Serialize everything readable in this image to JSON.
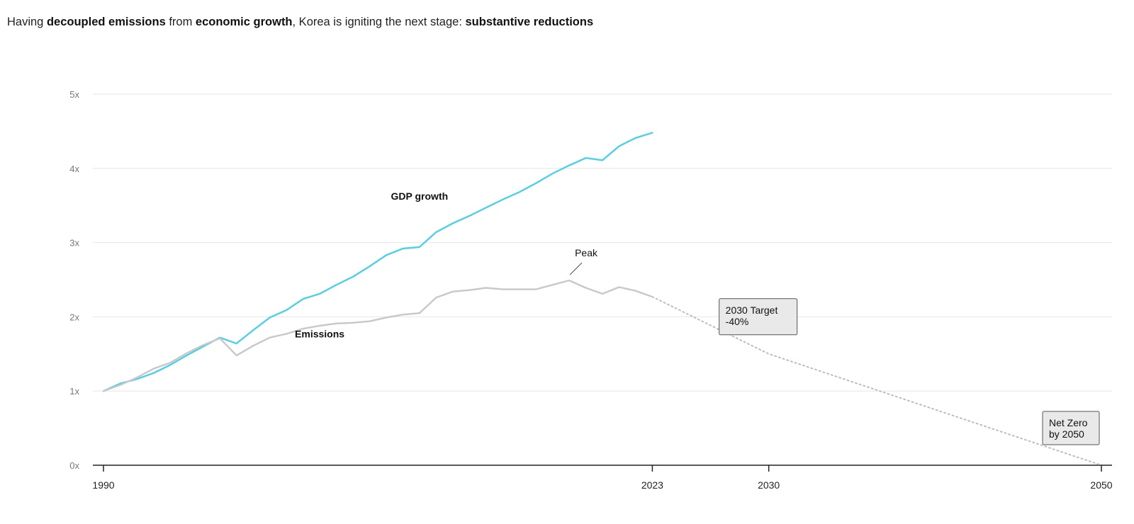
{
  "headline": {
    "part1": "Having ",
    "bold1": "decoupled emissions",
    "part2": " from ",
    "bold2": "economic growth",
    "part3": ", Korea is igniting the next stage: ",
    "bold3": "substantive reductions"
  },
  "chart_data": {
    "type": "line",
    "title": "Having decoupled emissions from economic growth, Korea is igniting the next stage: substantive reductions",
    "xlabel": "",
    "ylabel": "",
    "xlim": [
      1990,
      2050
    ],
    "ylim": [
      0,
      5
    ],
    "grid": true,
    "y_ticks": [
      {
        "value": 0,
        "label": "0x"
      },
      {
        "value": 1,
        "label": "1x"
      },
      {
        "value": 2,
        "label": "2x"
      },
      {
        "value": 3,
        "label": "3x"
      },
      {
        "value": 4,
        "label": "4x"
      },
      {
        "value": 5,
        "label": "5x"
      }
    ],
    "x_ticks": [
      {
        "value": 1990,
        "label": "1990"
      },
      {
        "value": 2023,
        "label": "2023"
      },
      {
        "value": 2030,
        "label": "2030"
      },
      {
        "value": 2050,
        "label": "2050"
      }
    ],
    "x_tick_marks": [
      1990,
      2023,
      2030,
      2050
    ],
    "series": [
      {
        "name": "GDP growth",
        "color": "#4fcfe8",
        "style": "solid",
        "x": [
          1990,
          1991,
          1992,
          1993,
          1994,
          1995,
          1996,
          1997,
          1998,
          1999,
          2000,
          2001,
          2002,
          2003,
          2004,
          2005,
          2006,
          2007,
          2008,
          2009,
          2010,
          2011,
          2012,
          2013,
          2014,
          2015,
          2016,
          2017,
          2018,
          2019,
          2020,
          2021,
          2022,
          2023
        ],
        "values": [
          1.0,
          1.1,
          1.16,
          1.24,
          1.35,
          1.48,
          1.6,
          1.72,
          1.64,
          1.82,
          1.99,
          2.09,
          2.24,
          2.31,
          2.43,
          2.54,
          2.68,
          2.83,
          2.92,
          2.94,
          3.14,
          3.26,
          3.36,
          3.47,
          3.58,
          3.68,
          3.8,
          3.93,
          4.04,
          4.14,
          4.11,
          4.3,
          4.41,
          4.48
        ]
      },
      {
        "name": "Emissions",
        "color": "#c8c8c8",
        "style": "solid",
        "x": [
          1990,
          1991,
          1992,
          1993,
          1994,
          1995,
          1996,
          1997,
          1998,
          1999,
          2000,
          2001,
          2002,
          2003,
          2004,
          2005,
          2006,
          2007,
          2008,
          2009,
          2010,
          2011,
          2012,
          2013,
          2014,
          2015,
          2016,
          2017,
          2018,
          2019,
          2020,
          2021,
          2022,
          2023
        ],
        "values": [
          1.0,
          1.08,
          1.18,
          1.3,
          1.38,
          1.51,
          1.62,
          1.71,
          1.48,
          1.61,
          1.72,
          1.77,
          1.84,
          1.88,
          1.91,
          1.92,
          1.94,
          1.99,
          2.03,
          2.05,
          2.26,
          2.34,
          2.36,
          2.39,
          2.37,
          2.37,
          2.37,
          2.43,
          2.49,
          2.39,
          2.31,
          2.4,
          2.35,
          2.27
        ]
      },
      {
        "name": "",
        "color": "#bdbdbd",
        "style": "dotted",
        "x": [
          2023,
          2030,
          2050
        ],
        "values": [
          2.27,
          1.5,
          0
        ]
      }
    ],
    "annotations": [
      {
        "id": "peak",
        "text": "Peak",
        "x": 2018,
        "y": 2.49
      },
      {
        "id": "target2030",
        "lines": [
          "2030 Target",
          "-40%"
        ],
        "x": 2030,
        "y": 1.5
      },
      {
        "id": "netzero",
        "lines": [
          "Net Zero",
          "by 2050"
        ],
        "x": 2050,
        "y": 0
      }
    ],
    "series_labels": [
      {
        "text": "GDP growth",
        "x": 2009,
        "y": 3.58
      },
      {
        "text": "Emissions",
        "x": 2003,
        "y": 1.72
      }
    ]
  }
}
